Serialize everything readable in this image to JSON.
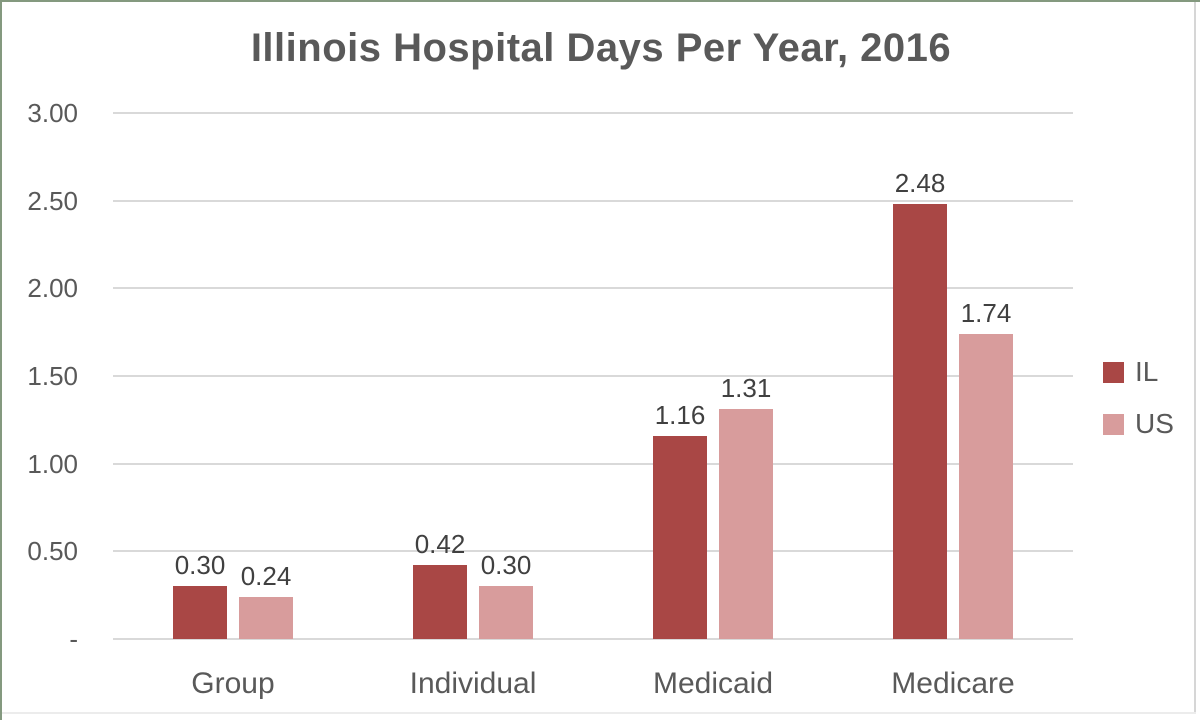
{
  "chart_data": {
    "type": "bar",
    "title": "Illinois Hospital Days Per Year, 2016",
    "categories": [
      "Group",
      "Individual",
      "Medicaid",
      "Medicare"
    ],
    "series": [
      {
        "name": "IL",
        "color": "#A94745",
        "values": [
          0.3,
          0.42,
          1.16,
          2.48
        ],
        "value_labels": [
          "0.30",
          "0.42",
          "1.16",
          "2.48"
        ]
      },
      {
        "name": "US",
        "color": "#D89C9C",
        "values": [
          0.24,
          0.3,
          1.31,
          1.74
        ],
        "value_labels": [
          "0.24",
          "0.30",
          "1.31",
          "1.74"
        ]
      }
    ],
    "y_axis": {
      "min": 0,
      "max": 3,
      "tick_interval": 0.5,
      "ticks": [
        {
          "label": "3.00",
          "value": 3.0
        },
        {
          "label": "2.50",
          "value": 2.5
        },
        {
          "label": "2.00",
          "value": 2.0
        },
        {
          "label": "1.50",
          "value": 1.5
        },
        {
          "label": "1.00",
          "value": 1.0
        },
        {
          "label": "0.50",
          "value": 0.5
        },
        {
          "label": "-",
          "value": 0
        }
      ]
    },
    "legend": {
      "position": "right",
      "entries": [
        "IL",
        "US"
      ]
    },
    "grid": true,
    "colors": {
      "grid_line": "#D9D9D9",
      "axis_text": "#595959",
      "title_text": "#595959",
      "value_label_text": "#404040",
      "frame_border_green": "#84997F",
      "frame_border_gray": "#D6D6D6"
    }
  }
}
